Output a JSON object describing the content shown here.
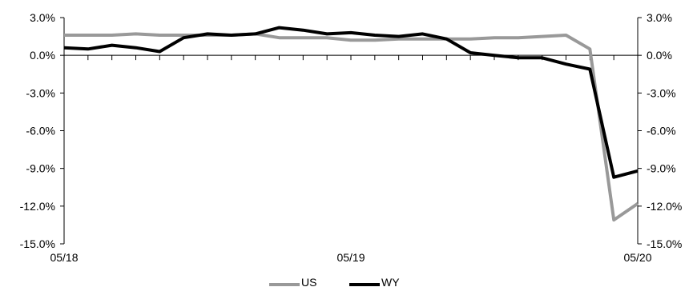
{
  "chart_data": {
    "type": "line",
    "title": "",
    "xlabel": "",
    "ylabel": "",
    "x": [
      "05/18",
      "06/18",
      "07/18",
      "08/18",
      "09/18",
      "10/18",
      "11/18",
      "12/18",
      "01/19",
      "02/19",
      "03/19",
      "04/19",
      "05/19",
      "06/19",
      "07/19",
      "08/19",
      "09/19",
      "10/19",
      "11/19",
      "12/19",
      "01/20",
      "02/20",
      "03/20",
      "04/20",
      "05/20"
    ],
    "x_tick_labels": [
      "05/18",
      "05/19",
      "05/20"
    ],
    "y_tick_labels": [
      "3.0%",
      "0.0%",
      "-3.0%",
      "-6.0%",
      "-9.0%",
      "-12.0%",
      "-15.0%"
    ],
    "y_tick_values": [
      3,
      0,
      -3,
      -6,
      -9,
      -12,
      -15
    ],
    "ylim": [
      -15,
      3
    ],
    "y_unit": "%",
    "grid": false,
    "legend_position": "bottom-center",
    "series": [
      {
        "name": "US",
        "color": "#999999",
        "values": [
          1.6,
          1.6,
          1.6,
          1.7,
          1.6,
          1.6,
          1.6,
          1.6,
          1.7,
          1.4,
          1.4,
          1.4,
          1.2,
          1.2,
          1.3,
          1.3,
          1.3,
          1.3,
          1.4,
          1.4,
          1.5,
          1.6,
          0.5,
          -13.1,
          -11.8
        ]
      },
      {
        "name": "WY",
        "color": "#000000",
        "values": [
          0.6,
          0.5,
          0.8,
          0.6,
          0.3,
          1.4,
          1.7,
          1.6,
          1.7,
          2.2,
          2.0,
          1.7,
          1.8,
          1.6,
          1.5,
          1.7,
          1.3,
          0.2,
          0.0,
          -0.2,
          -0.2,
          -0.7,
          -1.1,
          -9.7,
          -9.2
        ]
      }
    ]
  }
}
